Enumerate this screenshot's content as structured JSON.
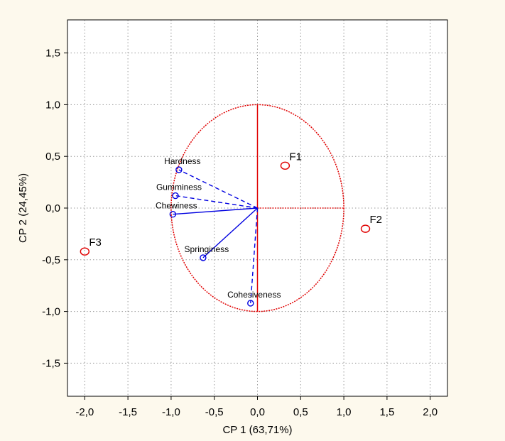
{
  "chart_data": {
    "type": "scatter",
    "title": "",
    "xlabel": "CP 1 (63,71%)",
    "ylabel": "CP 2 (24,45%)",
    "xlim": [
      -2.2,
      2.2
    ],
    "ylim": [
      -1.82,
      1.82
    ],
    "xticks": [
      -2.0,
      -1.5,
      -1.0,
      -0.5,
      0.0,
      0.5,
      1.0,
      1.5,
      2.0
    ],
    "xtick_labels": [
      "-2,0",
      "-1,5",
      "-1,0",
      "-0,5",
      "0,0",
      "0,5",
      "1,0",
      "1,5",
      "2,0"
    ],
    "yticks": [
      1.5,
      1.0,
      0.5,
      0.0,
      -0.5,
      -1.0,
      -1.5
    ],
    "ytick_labels": [
      "1,5",
      "1,0",
      "0,5",
      "0,0",
      "-0,5",
      "-1,0",
      "-1,5"
    ],
    "grid": true,
    "unit_circle": {
      "radius": 1.0,
      "color": "#e00000"
    },
    "variables": [
      {
        "name": "Hardness",
        "x": -0.91,
        "y": 0.37,
        "line": "dashed"
      },
      {
        "name": "Gumminess",
        "x": -0.95,
        "y": 0.12,
        "line": "dashed"
      },
      {
        "name": "Chewiness",
        "x": -0.98,
        "y": -0.06,
        "line": "solid"
      },
      {
        "name": "Springiness",
        "x": -0.63,
        "y": -0.48,
        "line": "solid"
      },
      {
        "name": "Cohesiveness",
        "x": -0.08,
        "y": -0.92,
        "line": "dashed"
      }
    ],
    "observations": [
      {
        "name": "F1",
        "x": 0.32,
        "y": 0.41
      },
      {
        "name": "F2",
        "x": 1.25,
        "y": -0.2
      },
      {
        "name": "F3",
        "x": -2.0,
        "y": -0.42
      }
    ],
    "colors": {
      "variables": "#0000e0",
      "observations": "#e00000",
      "grid": "#9a9a9a",
      "background": "#fdf9ed",
      "plot_area": "#ffffff"
    }
  }
}
